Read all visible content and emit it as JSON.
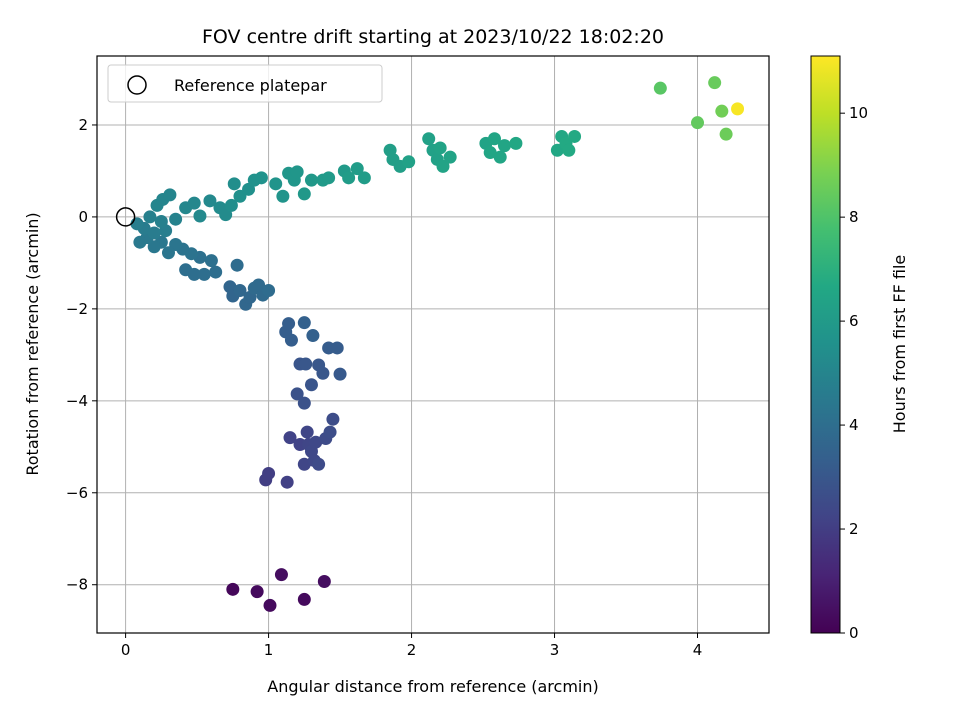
{
  "chart_data": {
    "type": "scatter",
    "title": "FOV centre drift starting at 2023/10/22 18:02:20",
    "xlabel": "Angular distance from reference (arcmin)",
    "ylabel": "Rotation from reference (arcmin)",
    "xlim": [
      -0.2,
      4.5
    ],
    "ylim": [
      -9.05,
      3.5
    ],
    "xticks": [
      0,
      1,
      2,
      3,
      4
    ],
    "yticks": [
      -8,
      -6,
      -4,
      -2,
      0,
      2
    ],
    "grid": true,
    "legend": {
      "position": "top-left",
      "label": "Reference platepar"
    },
    "reference_point": {
      "x": 0,
      "y": 0
    },
    "colorbar": {
      "label": "Hours from first FF file",
      "range": [
        0,
        11.1
      ],
      "ticks": [
        0,
        2,
        4,
        6,
        8,
        10
      ],
      "colormap": "viridis"
    },
    "points": [
      {
        "x": 0.75,
        "y": -8.1,
        "c": 0.2
      },
      {
        "x": 0.92,
        "y": -8.15,
        "c": 0.3
      },
      {
        "x": 1.01,
        "y": -8.45,
        "c": 0.3
      },
      {
        "x": 1.09,
        "y": -7.78,
        "c": 0.4
      },
      {
        "x": 1.25,
        "y": -8.32,
        "c": 0.3
      },
      {
        "x": 1.39,
        "y": -7.93,
        "c": 0.4
      },
      {
        "x": 0.98,
        "y": -5.72,
        "c": 2.0
      },
      {
        "x": 1.0,
        "y": -5.58,
        "c": 2.0
      },
      {
        "x": 1.13,
        "y": -5.77,
        "c": 2.1
      },
      {
        "x": 1.15,
        "y": -4.8,
        "c": 2.2
      },
      {
        "x": 1.22,
        "y": -4.95,
        "c": 2.2
      },
      {
        "x": 1.25,
        "y": -5.38,
        "c": 2.3
      },
      {
        "x": 1.27,
        "y": -4.68,
        "c": 2.3
      },
      {
        "x": 1.28,
        "y": -4.95,
        "c": 2.3
      },
      {
        "x": 1.3,
        "y": -5.1,
        "c": 2.4
      },
      {
        "x": 1.32,
        "y": -5.3,
        "c": 2.4
      },
      {
        "x": 1.33,
        "y": -4.9,
        "c": 2.4
      },
      {
        "x": 1.35,
        "y": -5.38,
        "c": 2.5
      },
      {
        "x": 1.4,
        "y": -4.82,
        "c": 2.5
      },
      {
        "x": 1.43,
        "y": -4.68,
        "c": 2.6
      },
      {
        "x": 1.45,
        "y": -4.4,
        "c": 2.6
      },
      {
        "x": 1.2,
        "y": -3.85,
        "c": 2.8
      },
      {
        "x": 1.25,
        "y": -4.05,
        "c": 2.8
      },
      {
        "x": 1.3,
        "y": -3.65,
        "c": 2.9
      },
      {
        "x": 1.22,
        "y": -3.2,
        "c": 2.9
      },
      {
        "x": 1.26,
        "y": -3.2,
        "c": 3.0
      },
      {
        "x": 1.35,
        "y": -3.22,
        "c": 3.0
      },
      {
        "x": 1.38,
        "y": -3.4,
        "c": 3.0
      },
      {
        "x": 1.5,
        "y": -3.42,
        "c": 3.1
      },
      {
        "x": 1.42,
        "y": -2.85,
        "c": 3.2
      },
      {
        "x": 1.48,
        "y": -2.85,
        "c": 3.2
      },
      {
        "x": 1.12,
        "y": -2.5,
        "c": 3.3
      },
      {
        "x": 1.14,
        "y": -2.32,
        "c": 3.3
      },
      {
        "x": 1.16,
        "y": -2.68,
        "c": 3.3
      },
      {
        "x": 1.25,
        "y": -2.3,
        "c": 3.4
      },
      {
        "x": 1.31,
        "y": -2.58,
        "c": 3.4
      },
      {
        "x": 0.73,
        "y": -1.52,
        "c": 3.6
      },
      {
        "x": 0.75,
        "y": -1.72,
        "c": 3.6
      },
      {
        "x": 0.8,
        "y": -1.6,
        "c": 3.7
      },
      {
        "x": 0.84,
        "y": -1.9,
        "c": 3.7
      },
      {
        "x": 0.87,
        "y": -1.75,
        "c": 3.7
      },
      {
        "x": 0.9,
        "y": -1.55,
        "c": 3.8
      },
      {
        "x": 0.93,
        "y": -1.48,
        "c": 3.8
      },
      {
        "x": 0.96,
        "y": -1.7,
        "c": 3.8
      },
      {
        "x": 1.0,
        "y": -1.6,
        "c": 3.9
      },
      {
        "x": 0.78,
        "y": -1.05,
        "c": 3.9
      },
      {
        "x": 0.63,
        "y": -1.2,
        "c": 4.0
      },
      {
        "x": 0.55,
        "y": -1.25,
        "c": 4.0
      },
      {
        "x": 0.48,
        "y": -1.25,
        "c": 4.0
      },
      {
        "x": 0.42,
        "y": -1.15,
        "c": 4.0
      },
      {
        "x": 0.6,
        "y": -0.95,
        "c": 4.1
      },
      {
        "x": 0.52,
        "y": -0.88,
        "c": 4.1
      },
      {
        "x": 0.46,
        "y": -0.8,
        "c": 4.2
      },
      {
        "x": 0.4,
        "y": -0.7,
        "c": 4.2
      },
      {
        "x": 0.35,
        "y": -0.6,
        "c": 4.3
      },
      {
        "x": 0.3,
        "y": -0.78,
        "c": 4.3
      },
      {
        "x": 0.25,
        "y": -0.55,
        "c": 4.4
      },
      {
        "x": 0.2,
        "y": -0.65,
        "c": 4.4
      },
      {
        "x": 0.15,
        "y": -0.45,
        "c": 4.5
      },
      {
        "x": 0.1,
        "y": -0.55,
        "c": 4.5
      },
      {
        "x": 0.13,
        "y": -0.25,
        "c": 4.6
      },
      {
        "x": 0.2,
        "y": -0.35,
        "c": 4.6
      },
      {
        "x": 0.28,
        "y": -0.3,
        "c": 4.7
      },
      {
        "x": 0.08,
        "y": -0.15,
        "c": 4.7
      },
      {
        "x": 0.17,
        "y": 0.0,
        "c": 4.8
      },
      {
        "x": 0.25,
        "y": -0.1,
        "c": 4.8
      },
      {
        "x": 0.35,
        "y": -0.05,
        "c": 4.9
      },
      {
        "x": 0.22,
        "y": 0.25,
        "c": 5.0
      },
      {
        "x": 0.26,
        "y": 0.38,
        "c": 5.0
      },
      {
        "x": 0.31,
        "y": 0.48,
        "c": 5.0
      },
      {
        "x": 0.42,
        "y": 0.2,
        "c": 5.1
      },
      {
        "x": 0.48,
        "y": 0.3,
        "c": 5.1
      },
      {
        "x": 0.52,
        "y": 0.02,
        "c": 5.2
      },
      {
        "x": 0.59,
        "y": 0.35,
        "c": 5.2
      },
      {
        "x": 0.66,
        "y": 0.2,
        "c": 5.3
      },
      {
        "x": 0.7,
        "y": 0.05,
        "c": 5.3
      },
      {
        "x": 0.74,
        "y": 0.25,
        "c": 5.4
      },
      {
        "x": 0.76,
        "y": 0.72,
        "c": 5.4
      },
      {
        "x": 0.8,
        "y": 0.45,
        "c": 5.5
      },
      {
        "x": 0.86,
        "y": 0.6,
        "c": 5.5
      },
      {
        "x": 0.9,
        "y": 0.8,
        "c": 5.6
      },
      {
        "x": 0.95,
        "y": 0.85,
        "c": 5.6
      },
      {
        "x": 1.05,
        "y": 0.72,
        "c": 5.7
      },
      {
        "x": 1.1,
        "y": 0.45,
        "c": 5.7
      },
      {
        "x": 1.14,
        "y": 0.95,
        "c": 5.8
      },
      {
        "x": 1.18,
        "y": 0.8,
        "c": 5.8
      },
      {
        "x": 1.2,
        "y": 0.98,
        "c": 5.8
      },
      {
        "x": 1.25,
        "y": 0.5,
        "c": 5.9
      },
      {
        "x": 1.3,
        "y": 0.8,
        "c": 5.9
      },
      {
        "x": 1.38,
        "y": 0.8,
        "c": 6.0
      },
      {
        "x": 1.42,
        "y": 0.85,
        "c": 6.0
      },
      {
        "x": 1.53,
        "y": 1.0,
        "c": 6.0
      },
      {
        "x": 1.56,
        "y": 0.85,
        "c": 6.1
      },
      {
        "x": 1.62,
        "y": 1.05,
        "c": 6.1
      },
      {
        "x": 1.67,
        "y": 0.85,
        "c": 6.1
      },
      {
        "x": 1.85,
        "y": 1.45,
        "c": 6.2
      },
      {
        "x": 1.87,
        "y": 1.25,
        "c": 6.2
      },
      {
        "x": 1.92,
        "y": 1.1,
        "c": 6.2
      },
      {
        "x": 1.98,
        "y": 1.2,
        "c": 6.3
      },
      {
        "x": 2.12,
        "y": 1.7,
        "c": 6.3
      },
      {
        "x": 2.15,
        "y": 1.45,
        "c": 6.3
      },
      {
        "x": 2.18,
        "y": 1.25,
        "c": 6.3
      },
      {
        "x": 2.2,
        "y": 1.5,
        "c": 6.4
      },
      {
        "x": 2.22,
        "y": 1.1,
        "c": 6.4
      },
      {
        "x": 2.27,
        "y": 1.3,
        "c": 6.4
      },
      {
        "x": 2.52,
        "y": 1.6,
        "c": 6.4
      },
      {
        "x": 2.55,
        "y": 1.4,
        "c": 6.5
      },
      {
        "x": 2.58,
        "y": 1.7,
        "c": 6.5
      },
      {
        "x": 2.62,
        "y": 1.3,
        "c": 6.5
      },
      {
        "x": 2.65,
        "y": 1.55,
        "c": 6.5
      },
      {
        "x": 2.73,
        "y": 1.6,
        "c": 6.6
      },
      {
        "x": 3.02,
        "y": 1.45,
        "c": 6.6
      },
      {
        "x": 3.05,
        "y": 1.75,
        "c": 6.6
      },
      {
        "x": 3.08,
        "y": 1.6,
        "c": 6.7
      },
      {
        "x": 3.1,
        "y": 1.45,
        "c": 6.7
      },
      {
        "x": 3.14,
        "y": 1.75,
        "c": 6.7
      },
      {
        "x": 3.74,
        "y": 2.8,
        "c": 8.2
      },
      {
        "x": 4.0,
        "y": 2.05,
        "c": 8.4
      },
      {
        "x": 4.12,
        "y": 2.92,
        "c": 8.5
      },
      {
        "x": 4.17,
        "y": 2.3,
        "c": 8.7
      },
      {
        "x": 4.2,
        "y": 1.8,
        "c": 8.6
      },
      {
        "x": 4.28,
        "y": 2.35,
        "c": 11.0
      }
    ]
  }
}
